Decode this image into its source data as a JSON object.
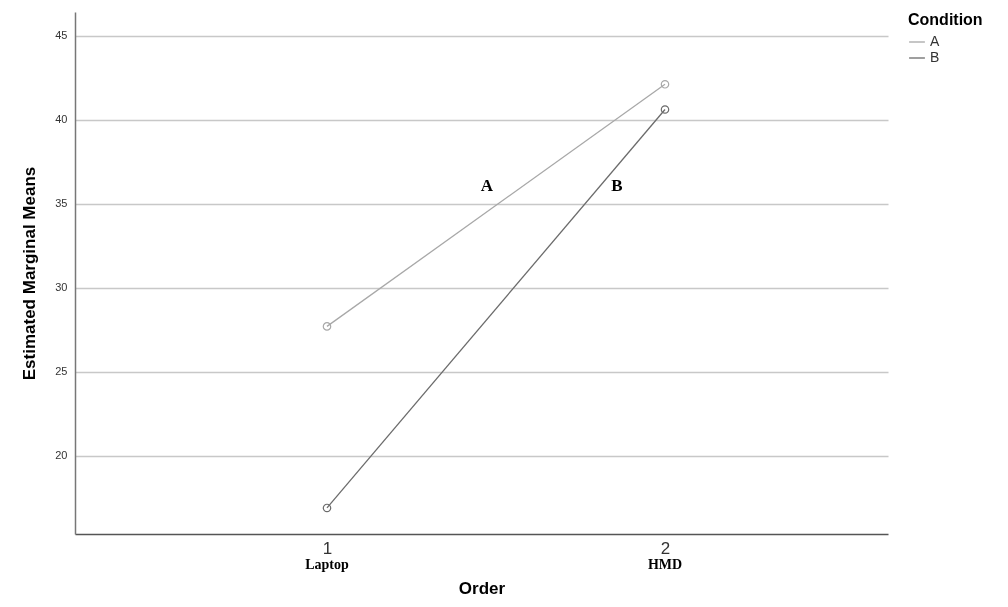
{
  "chart_data": {
    "type": "line",
    "xlabel": "Order",
    "ylabel": "Estimated Marginal Means",
    "legend_title": "Condition",
    "categories": [
      "1",
      "2"
    ],
    "series": [
      {
        "name": "A",
        "color": "#a8a8a8",
        "values": [
          27.7,
          42.1
        ]
      },
      {
        "name": "B",
        "color": "#6b6b6b",
        "values": [
          16.9,
          40.6
        ]
      }
    ],
    "ylim": [
      15.35,
      46.4
    ],
    "yticks": [
      20,
      25,
      30,
      35,
      40,
      45
    ],
    "grid": "y",
    "legend": "top right",
    "marker": "circle",
    "line_style": "solid",
    "annotations": [
      "Laptop",
      "HMD",
      "A",
      "B"
    ]
  }
}
